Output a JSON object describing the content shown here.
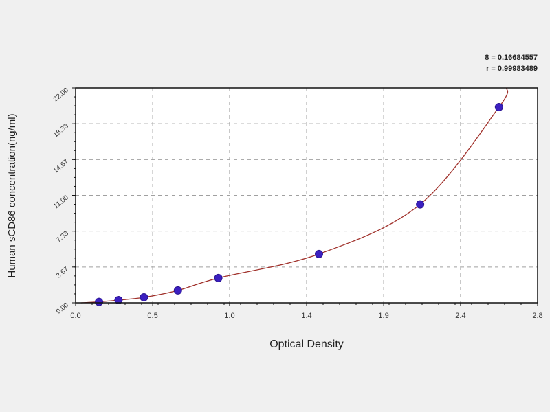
{
  "chart_data": {
    "type": "scatter",
    "title": "",
    "xlabel": "Optical Density",
    "ylabel": "Human sCD86 concentration(ng/ml)",
    "xlim": [
      0,
      2.8
    ],
    "ylim": [
      0,
      22
    ],
    "x_ticks": [
      "0.0",
      "0.5",
      "1.0",
      "1.4",
      "1.9",
      "2.4",
      "2.8"
    ],
    "x_tick_values": [
      0,
      0.467,
      0.933,
      1.4,
      1.867,
      2.333,
      2.8
    ],
    "y_ticks": [
      "0.00",
      "3.67",
      "7.33",
      "11.00",
      "14.67",
      "18.33",
      "22.00"
    ],
    "y_tick_values": [
      0,
      3.667,
      7.333,
      11,
      14.667,
      18.333,
      22
    ],
    "grid": true,
    "stats": [
      "8 = 0.16684557",
      "r = 0.99983489"
    ],
    "points": {
      "x": [
        0.142,
        0.26,
        0.414,
        0.62,
        0.865,
        1.475,
        2.088,
        2.566
      ],
      "y": [
        0.1,
        0.28,
        0.56,
        1.27,
        2.54,
        5.0,
        10.08,
        20.03
      ]
    },
    "colors": {
      "points": "#3b1fc0",
      "curve": "#a0302a",
      "grid": "#a0a0a0",
      "background": "#f0f0f0"
    }
  }
}
